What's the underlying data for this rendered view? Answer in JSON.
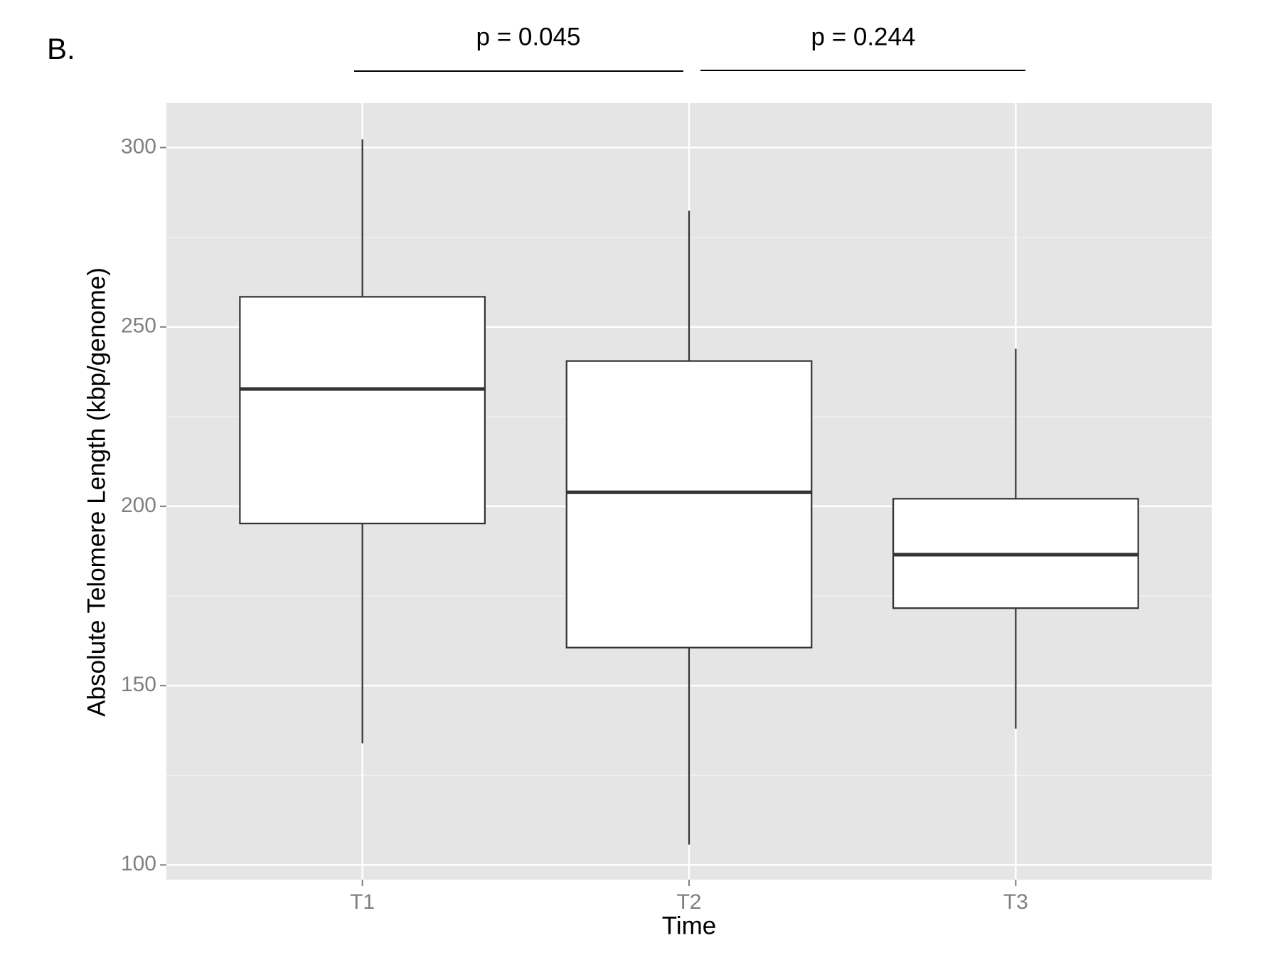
{
  "chart_data": {
    "type": "box",
    "panel_label": "B.",
    "x_label": "Time",
    "y_label": "Absolute Telomere Length (kbp/genome)",
    "annotations": [
      {
        "text": "p = 0.045"
      },
      {
        "text": "p = 0.244"
      }
    ],
    "categories": [
      "T1",
      "T2",
      "T3"
    ],
    "boxes": [
      {
        "low": 133.9,
        "q1": 195.2,
        "median": 232.7,
        "q3": 258.4,
        "high": 302.3
      },
      {
        "low": 105.7,
        "q1": 160.6,
        "median": 203.9,
        "q3": 240.5,
        "high": 282.4
      },
      {
        "low": 138.0,
        "q1": 171.6,
        "median": 186.5,
        "q3": 202.1,
        "high": 243.9
      }
    ],
    "ylim": [
      95.9,
      312.4
    ],
    "yticks": [
      100,
      150,
      200,
      250,
      300
    ],
    "minor_yticks": [
      125,
      175,
      225,
      275
    ],
    "grid": true
  }
}
